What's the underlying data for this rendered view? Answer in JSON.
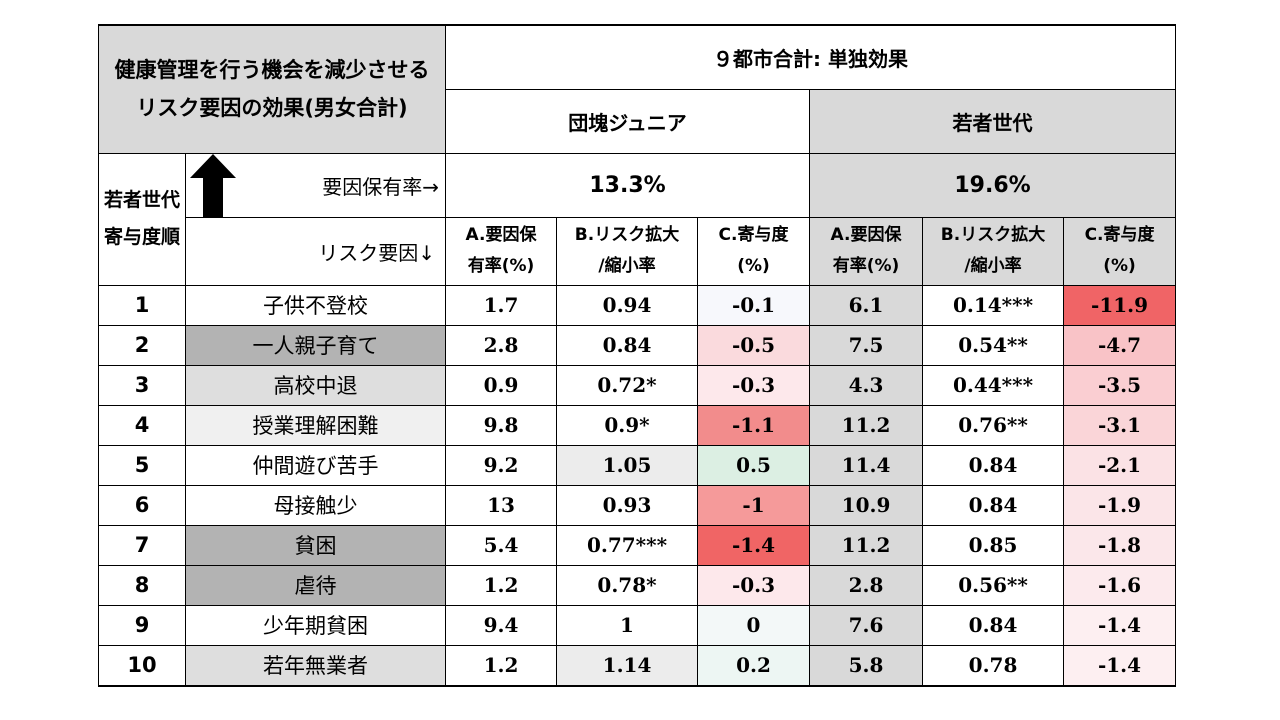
{
  "title": "健康管理を行う機会を減少させるリスク要因の効果(男女合計)",
  "header": {
    "main": "９都市合計: 単独効果",
    "group1": "団塊ジュニア",
    "group2": "若者世代",
    "rank_label": "若者世代寄与度順",
    "rate_label": "要因保有率→",
    "risk_label": "リスク要因↓",
    "rate1": "13.3%",
    "rate2": "19.6%",
    "colA_l1": "A.要因保",
    "colA_l2": "有率(%)",
    "colB_l1": "B.リスク拡大",
    "colB_l2": "/縮小率",
    "colC_l1": "C.寄与度",
    "colC_l2": "(%)"
  },
  "rows": [
    {
      "rank": "1",
      "factor": "子供不登校",
      "a1": "1.7",
      "b1": "0.94",
      "c1": "-0.1",
      "a2": "6.1",
      "b2": "0.14***",
      "c2": "-11.9"
    },
    {
      "rank": "2",
      "factor": "一人親子育て",
      "a1": "2.8",
      "b1": "0.84",
      "c1": "-0.5",
      "a2": "7.5",
      "b2": "0.54**",
      "c2": "-4.7"
    },
    {
      "rank": "3",
      "factor": "高校中退",
      "a1": "0.9",
      "b1": "0.72*",
      "c1": "-0.3",
      "a2": "4.3",
      "b2": "0.44***",
      "c2": "-3.5"
    },
    {
      "rank": "4",
      "factor": "授業理解困難",
      "a1": "9.8",
      "b1": "0.9*",
      "c1": "-1.1",
      "a2": "11.2",
      "b2": "0.76**",
      "c2": "-3.1"
    },
    {
      "rank": "5",
      "factor": "仲間遊び苦手",
      "a1": "9.2",
      "b1": "1.05",
      "c1": "0.5",
      "a2": "11.4",
      "b2": "0.84",
      "c2": "-2.1"
    },
    {
      "rank": "6",
      "factor": "母接触少",
      "a1": "13",
      "b1": "0.93",
      "c1": "-1",
      "a2": "10.9",
      "b2": "0.84",
      "c2": "-1.9"
    },
    {
      "rank": "7",
      "factor": "貧困",
      "a1": "5.4",
      "b1": "0.77***",
      "c1": "-1.4",
      "a2": "11.2",
      "b2": "0.85",
      "c2": "-1.8"
    },
    {
      "rank": "8",
      "factor": "虐待",
      "a1": "1.2",
      "b1": "0.78*",
      "c1": "-0.3",
      "a2": "2.8",
      "b2": "0.56**",
      "c2": "-1.6"
    },
    {
      "rank": "9",
      "factor": "少年期貧困",
      "a1": "9.4",
      "b1": "1",
      "c1": "0",
      "a2": "7.6",
      "b2": "0.84",
      "c2": "-1.4"
    },
    {
      "rank": "10",
      "factor": "若年無業者",
      "a1": "1.2",
      "b1": "1.14",
      "c1": "0.2",
      "a2": "5.8",
      "b2": "0.78",
      "c2": "-1.4"
    }
  ],
  "colors": {
    "factor_bg": [
      "#ffffff",
      "#b3b3b3",
      "#dedede",
      "#f0f0f0",
      "#ffffff",
      "#ffffff",
      "#b3b3b3",
      "#b3b3b3",
      "#ffffff",
      "#dedede"
    ],
    "b1_bg": [
      "#ffffff",
      "#ffffff",
      "#ffffff",
      "#ffffff",
      "#ececec",
      "#ffffff",
      "#ffffff",
      "#ffffff",
      "#ffffff",
      "#ececec"
    ],
    "c1_bg": [
      "#f7f8fc",
      "#fadadd",
      "#fde8eb",
      "#f28c8c",
      "#dcefe3",
      "#f59a9a",
      "#f06565",
      "#fde8eb",
      "#f3f8f8",
      "#edf6f3"
    ],
    "a2_bg": "#d9d9d9",
    "c2_bg": [
      "#f06466",
      "#f9c3c7",
      "#faced2",
      "#fad5d8",
      "#fbe2e5",
      "#fbe5e8",
      "#fbe7ea",
      "#fceaed",
      "#fdeff1",
      "#fdeff1"
    ]
  }
}
